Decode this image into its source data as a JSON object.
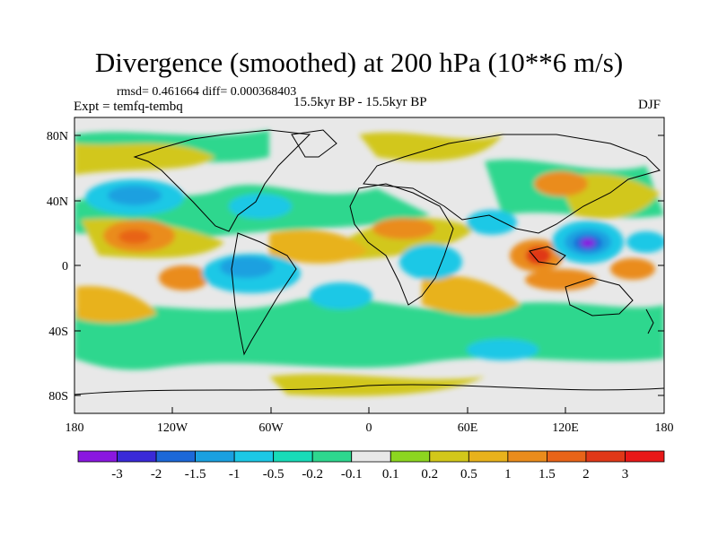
{
  "figure": {
    "title": "Divergence (smoothed) at 200 hPa (10**6 m/s)",
    "stats": "rmsd= 0.461664  diff= 0.000368403",
    "experiment": "Expt = temfq-tembq",
    "period": "15.5kyr BP - 15.5kyr BP",
    "season": "DJF"
  },
  "map": {
    "lat_labels": [
      "80N",
      "40N",
      "0",
      "40S",
      "80S"
    ],
    "lon_labels": [
      "180",
      "120W",
      "60W",
      "0",
      "60E",
      "120E",
      "180"
    ]
  },
  "colorbar": {
    "labels": [
      "-3",
      "-2",
      "-1.5",
      "-1",
      "-0.5",
      "-0.2",
      "-0.1",
      "0.1",
      "0.2",
      "0.5",
      "1",
      "1.5",
      "2",
      "3"
    ],
    "colors": [
      "#8a17e0",
      "#3a2ad8",
      "#1c68d8",
      "#1aa0e0",
      "#1cc8e6",
      "#18dbb8",
      "#2ed78e",
      "#e8e8e8",
      "#8cd620",
      "#d2c71a",
      "#e8b21c",
      "#ea8c1c",
      "#e86418",
      "#e03818",
      "#e81818"
    ]
  }
}
